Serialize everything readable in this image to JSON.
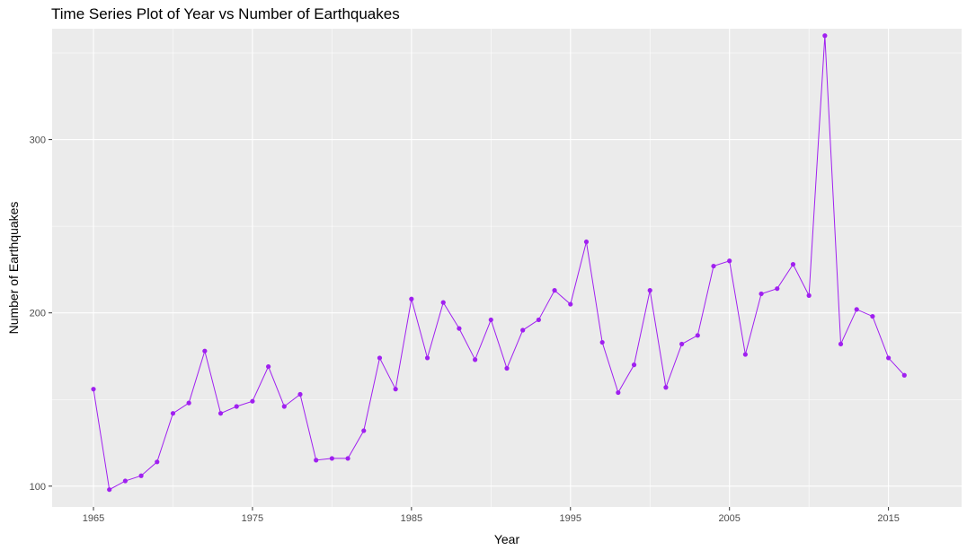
{
  "chart_data": {
    "type": "line",
    "title": "Time Series Plot of Year vs Number of Earthquakes",
    "xlabel": "Year",
    "ylabel": "Number of Earthquakes",
    "xlim": [
      1962.4,
      2019.6
    ],
    "ylim": [
      88,
      364
    ],
    "x_ticks": [
      1965,
      1975,
      1985,
      1995,
      2005,
      2015
    ],
    "y_ticks": [
      100,
      200,
      300
    ],
    "grid": true,
    "panel_color": "#ebebeb",
    "grid_color": "#ffffff",
    "series": [
      {
        "color": "#a020f0",
        "x": [
          1965,
          1966,
          1967,
          1968,
          1969,
          1970,
          1971,
          1972,
          1973,
          1974,
          1975,
          1976,
          1977,
          1978,
          1979,
          1980,
          1981,
          1982,
          1983,
          1984,
          1985,
          1986,
          1987,
          1988,
          1989,
          1990,
          1991,
          1992,
          1993,
          1994,
          1995,
          1996,
          1997,
          1998,
          1999,
          2000,
          2001,
          2002,
          2003,
          2004,
          2005,
          2006,
          2007,
          2008,
          2009,
          2010,
          2011,
          2012,
          2013,
          2014,
          2015,
          2016
        ],
        "y": [
          156,
          98,
          103,
          106,
          114,
          142,
          148,
          178,
          142,
          146,
          149,
          169,
          146,
          153,
          115,
          116,
          116,
          132,
          174,
          156,
          208,
          174,
          206,
          191,
          173,
          196,
          168,
          190,
          196,
          213,
          205,
          241,
          183,
          154,
          170,
          213,
          157,
          182,
          187,
          227,
          230,
          176,
          211,
          214,
          228,
          210,
          360,
          182,
          202,
          198,
          174,
          164
        ]
      }
    ]
  }
}
